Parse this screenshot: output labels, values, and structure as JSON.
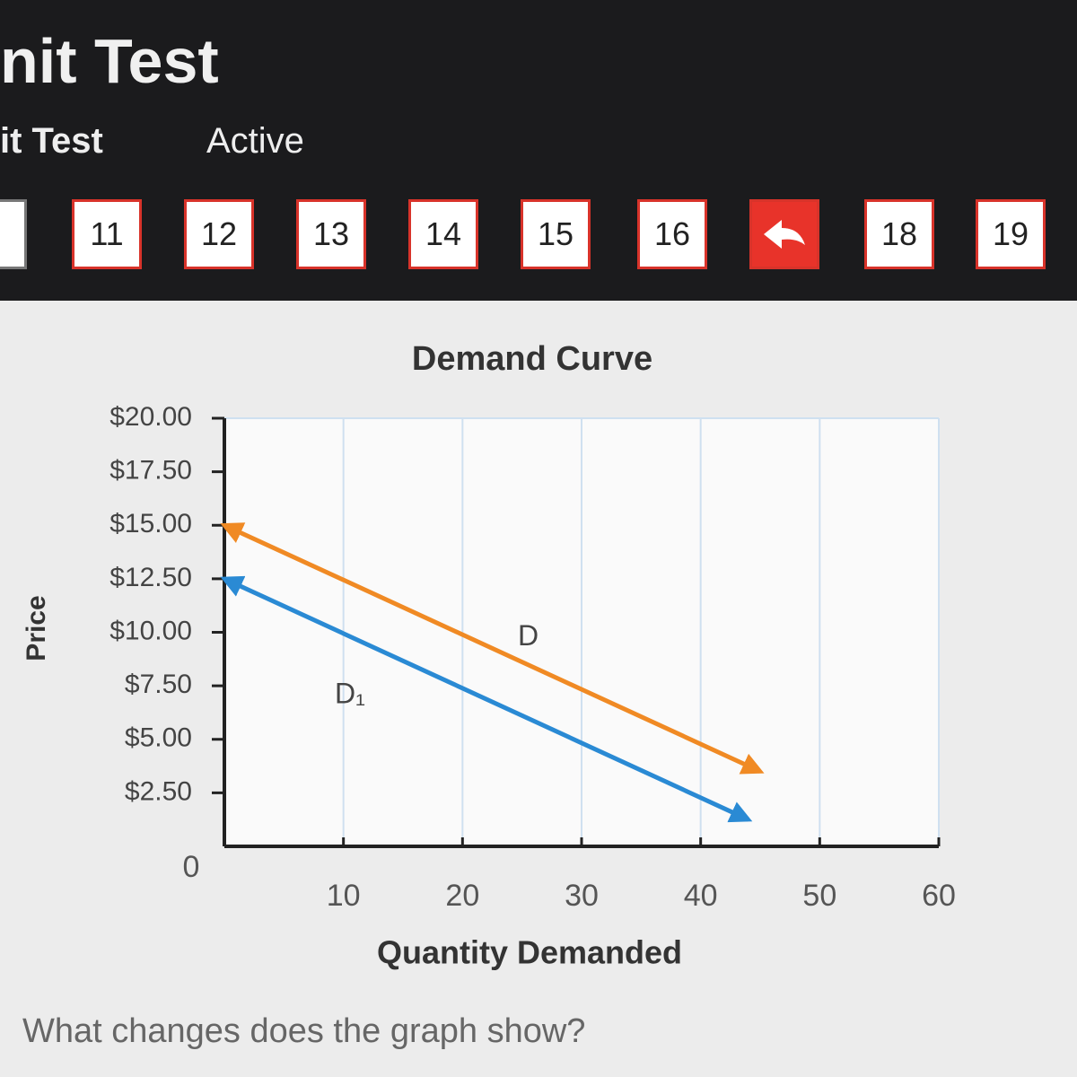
{
  "header": {
    "title": "nit Test",
    "subtitle": "it Test",
    "status": "Active"
  },
  "nav": {
    "buttons": [
      "11",
      "12",
      "13",
      "14",
      "15",
      "16",
      "18",
      "19"
    ]
  },
  "chart_data": {
    "type": "line",
    "title": "Demand Curve",
    "x_label": "Quantity Demanded",
    "y_label": "Price",
    "xlim": [
      0,
      60
    ],
    "xticks": [
      0,
      10,
      20,
      30,
      40,
      50,
      60
    ],
    "ylim": [
      0,
      20
    ],
    "yticks": [
      {
        "value": 2.5,
        "label": "$2.50"
      },
      {
        "value": 5,
        "label": "$5.00"
      },
      {
        "value": 7.5,
        "label": "$7.50"
      },
      {
        "value": 10,
        "label": "$10.00"
      },
      {
        "value": 12.5,
        "label": "$12.50"
      },
      {
        "value": 15,
        "label": "$15.00"
      },
      {
        "value": 17.5,
        "label": "$17.50"
      },
      {
        "value": 20,
        "label": "$20.00"
      }
    ],
    "grid": true,
    "series": [
      {
        "name": "D",
        "color": "#f08a24",
        "x": [
          0,
          45
        ],
        "values": [
          15,
          3.5
        ]
      },
      {
        "name": "D₁",
        "color": "#2a8ad4",
        "x": [
          0,
          44
        ],
        "values": [
          12.5,
          1.25
        ]
      }
    ]
  },
  "question": "What changes does the graph show?"
}
